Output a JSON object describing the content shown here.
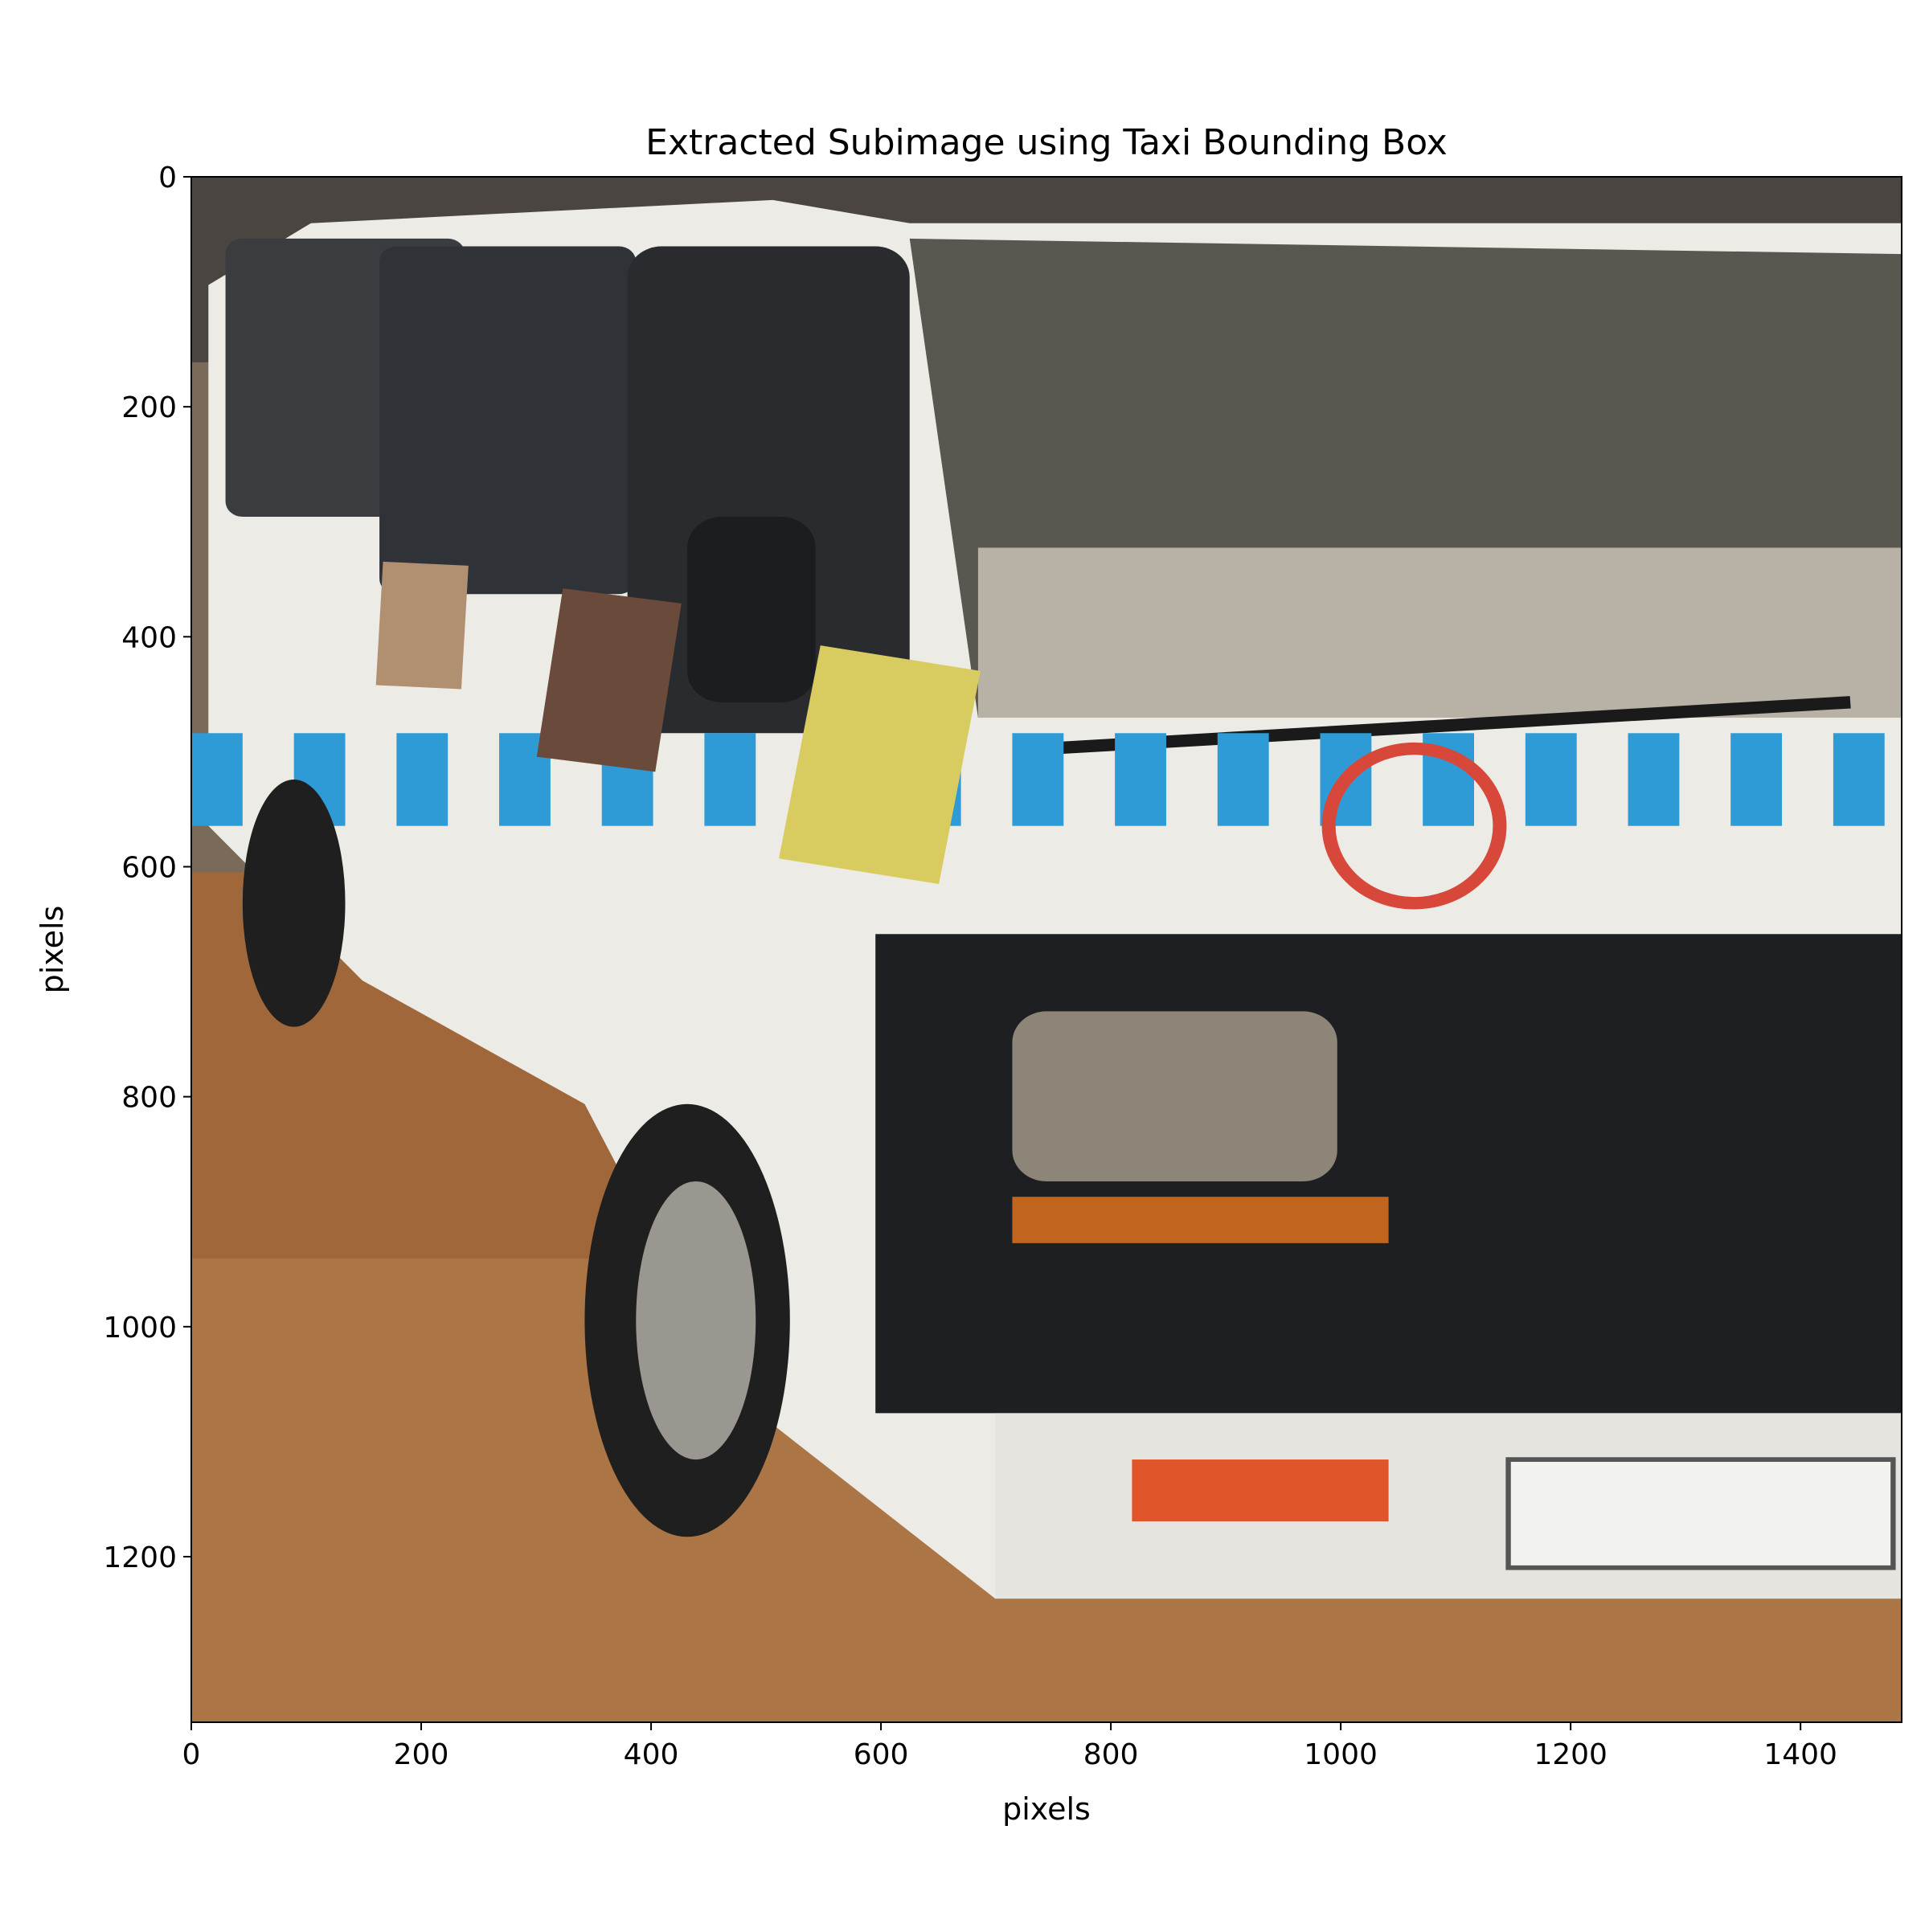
{
  "chart_data": {
    "type": "image",
    "title": "Extracted Subimage using Taxi Bounding Box",
    "xlabel": "pixels",
    "ylabel": "pixels",
    "xlim": [
      0,
      1488
    ],
    "ylim": [
      1344,
      0
    ],
    "xticks": [
      0,
      200,
      400,
      600,
      800,
      1000,
      1200,
      1400
    ],
    "yticks": [
      0,
      200,
      400,
      600,
      800,
      1000,
      1200
    ]
  }
}
